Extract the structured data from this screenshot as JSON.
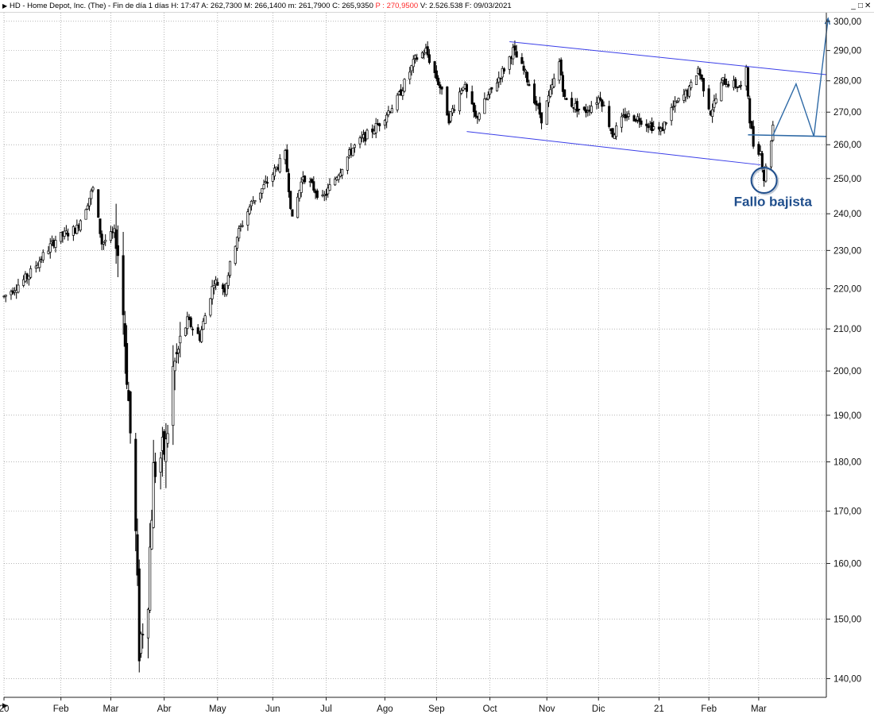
{
  "titlebar": {
    "title": "HD - Home Depot, Inc. (The)  - Fin de día 1 días  H: 17:47  A: 262,7300  M: 266,1400  m: 261,7900  C: 265,9350 ",
    "price_p": "P : 270,9500",
    "tail": " V: 2.526.538  F: 09/03/2021",
    "menu_icon": "triangle-right-icon",
    "controls": [
      "_",
      "□",
      "✕"
    ]
  },
  "chart_data": {
    "type": "candlestick",
    "title": "",
    "ylim": [
      137,
      303
    ],
    "y_scale": "log",
    "grid": true,
    "y_ticks": [
      140,
      150,
      160,
      170,
      180,
      190,
      200,
      210,
      220,
      230,
      240,
      250,
      260,
      270,
      280,
      290,
      300
    ],
    "y_tick_labels": [
      "140,00",
      "150,00",
      "160,00",
      "170,00",
      "180,00",
      "190,00",
      "200,00",
      "210,00",
      "220,00",
      "230,00",
      "240,00",
      "250,00",
      "260,00",
      "270,00",
      "280,00",
      "290,00",
      "300,00"
    ],
    "x_labels": [
      "20",
      "Feb",
      "Mar",
      "Abr",
      "May",
      "Jun",
      "Jul",
      "Ago",
      "Sep",
      "Oct",
      "Nov",
      "Dic",
      "21",
      "Feb",
      "Mar"
    ],
    "x_label_dates": [
      "2020-01-02",
      "2020-02-03",
      "2020-03-02",
      "2020-04-01",
      "2020-05-01",
      "2020-06-01",
      "2020-07-01",
      "2020-08-03",
      "2020-09-01",
      "2020-10-01",
      "2020-11-02",
      "2020-12-01",
      "2021-01-04",
      "2021-02-01",
      "2021-03-01"
    ],
    "x_range": [
      "2020-01-02",
      "2021-04-08"
    ],
    "trend_points": [
      [
        "2020-01-02",
        218
      ],
      [
        "2020-01-15",
        223
      ],
      [
        "2020-01-31",
        233
      ],
      [
        "2020-02-12",
        236
      ],
      [
        "2020-02-21",
        247
      ],
      [
        "2020-02-26",
        232
      ],
      [
        "2020-03-05",
        235
      ],
      [
        "2020-03-09",
        214
      ],
      [
        "2020-03-12",
        193
      ],
      [
        "2020-03-16",
        165
      ],
      [
        "2020-03-18",
        145
      ],
      [
        "2020-03-23",
        155
      ],
      [
        "2020-03-26",
        178
      ],
      [
        "2020-04-02",
        183
      ],
      [
        "2020-04-06",
        200
      ],
      [
        "2020-04-14",
        212
      ],
      [
        "2020-04-21",
        208
      ],
      [
        "2020-04-29",
        222
      ],
      [
        "2020-05-05",
        220
      ],
      [
        "2020-05-12",
        234
      ],
      [
        "2020-05-20",
        243
      ],
      [
        "2020-05-29",
        249
      ],
      [
        "2020-06-08",
        257
      ],
      [
        "2020-06-12",
        238
      ],
      [
        "2020-06-18",
        251
      ],
      [
        "2020-06-29",
        244
      ],
      [
        "2020-07-06",
        250
      ],
      [
        "2020-07-16",
        259
      ],
      [
        "2020-07-30",
        266
      ],
      [
        "2020-08-10",
        274
      ],
      [
        "2020-08-20",
        287
      ],
      [
        "2020-08-26",
        290
      ],
      [
        "2020-09-03",
        278
      ],
      [
        "2020-09-08",
        268
      ],
      [
        "2020-09-16",
        279
      ],
      [
        "2020-09-23",
        268
      ],
      [
        "2020-10-01",
        276
      ],
      [
        "2020-10-09",
        284
      ],
      [
        "2020-10-14",
        290
      ],
      [
        "2020-10-21",
        282
      ],
      [
        "2020-10-30",
        268
      ],
      [
        "2020-11-04",
        276
      ],
      [
        "2020-11-09",
        286
      ],
      [
        "2020-11-12",
        274
      ],
      [
        "2020-11-23",
        270
      ],
      [
        "2020-12-02",
        275
      ],
      [
        "2020-12-09",
        263
      ],
      [
        "2020-12-16",
        269
      ],
      [
        "2020-12-24",
        268
      ],
      [
        "2021-01-05",
        264
      ],
      [
        "2021-01-11",
        271
      ],
      [
        "2021-01-21",
        277
      ],
      [
        "2021-01-26",
        284
      ],
      [
        "2021-02-02",
        270
      ],
      [
        "2021-02-09",
        280
      ],
      [
        "2021-02-19",
        278
      ],
      [
        "2021-02-22",
        283
      ],
      [
        "2021-02-24",
        268
      ],
      [
        "2021-02-26",
        260
      ],
      [
        "2021-03-02",
        258
      ],
      [
        "2021-03-04",
        250
      ],
      [
        "2021-03-08",
        262
      ],
      [
        "2021-03-09",
        266
      ]
    ],
    "overlays": {
      "channel_upper": {
        "from": [
          "2020-10-12",
          293
        ],
        "to": [
          "2021-04-08",
          282
        ]
      },
      "channel_lower": {
        "from": [
          "2020-09-18",
          264
        ],
        "to": [
          "2021-03-02",
          254
        ]
      },
      "neckline": {
        "from": [
          "2021-02-23",
          263
        ],
        "to": [
          "2021-04-08",
          262.5
        ]
      },
      "projection_path": [
        [
          "2021-03-09",
          262.8
        ],
        [
          "2021-03-22",
          279
        ],
        [
          "2021-04-01",
          262.5
        ],
        [
          "2021-04-09",
          301
        ]
      ],
      "circle_center": [
        "2021-03-04",
        249.5
      ],
      "annotation": {
        "text": "Fallo bajista",
        "anchor": [
          "2021-03-09",
          243
        ]
      }
    },
    "colors": {
      "candle": "#000000",
      "grid": "#8a8a8a",
      "channel": "#3a3ee8",
      "projection": "#2f6aa6",
      "annotation": "#1f4e8c"
    }
  }
}
